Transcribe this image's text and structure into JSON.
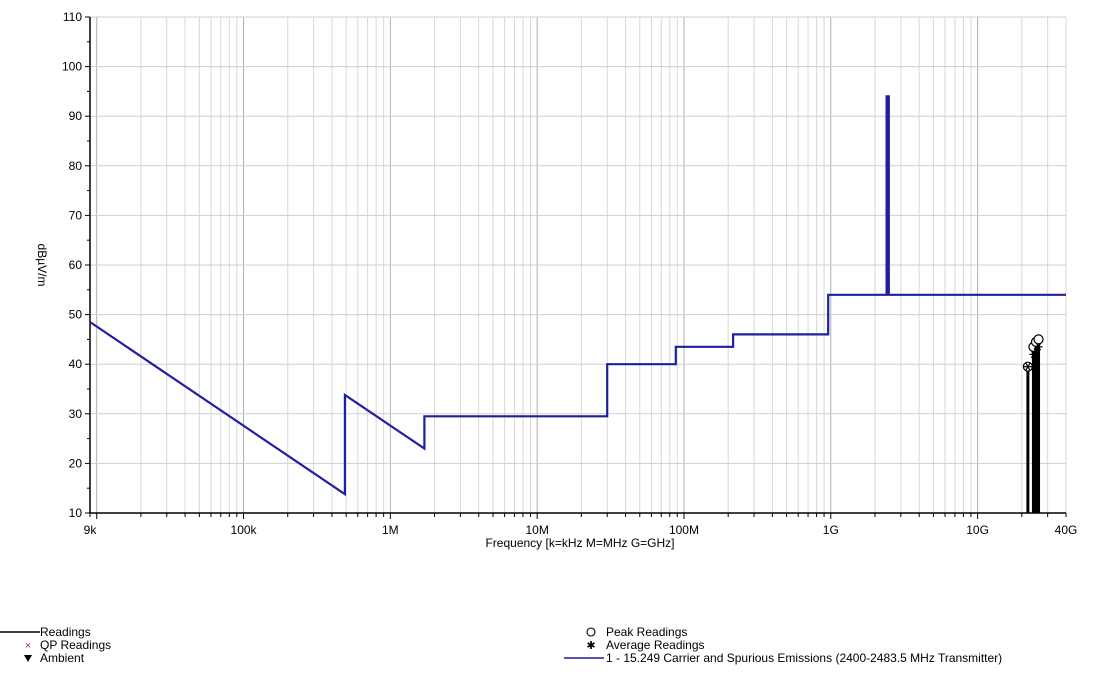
{
  "chart_data": {
    "type": "line",
    "title": "",
    "xlabel": "Frequency [k=kHz M=MHz G=GHz]",
    "ylabel": "dBµV/m",
    "x_scale": "log",
    "xlim_hz": [
      9000,
      40000000000
    ],
    "ylim": [
      10,
      110
    ],
    "grid": true,
    "x_ticks": [
      {
        "value": 9000,
        "label": "9k"
      },
      {
        "value": 100000,
        "label": "100k"
      },
      {
        "value": 1000000,
        "label": "1M"
      },
      {
        "value": 10000000,
        "label": "10M"
      },
      {
        "value": 100000000,
        "label": "100M"
      },
      {
        "value": 1000000000,
        "label": "1G"
      },
      {
        "value": 10000000000,
        "label": "10G"
      },
      {
        "value": 40000000000,
        "label": "40G"
      }
    ],
    "y_ticks": [
      10,
      20,
      30,
      40,
      50,
      60,
      70,
      80,
      90,
      100,
      110
    ],
    "limit_line": {
      "name": "1 - 15.249 Carrier and Spurious Emissions (2400-2483.5 MHz Transmitter)",
      "color": "#1f1fa0",
      "points": [
        [
          9000,
          48.5
        ],
        [
          490000,
          13.8
        ],
        [
          490000,
          33.8
        ],
        [
          1705000,
          23.0
        ],
        [
          1705000,
          29.5
        ],
        [
          30000000,
          29.5
        ],
        [
          30000000,
          40.0
        ],
        [
          88000000,
          40.0
        ],
        [
          88000000,
          43.5
        ],
        [
          216000000,
          43.5
        ],
        [
          216000000,
          46.0
        ],
        [
          960000000,
          46.0
        ],
        [
          960000000,
          54.0
        ],
        [
          2400000000,
          54.0
        ],
        [
          2400000000,
          94.0
        ],
        [
          2483500000,
          94.0
        ],
        [
          2483500000,
          54.0
        ],
        [
          40000000000,
          54.0
        ]
      ]
    },
    "readings": [
      {
        "freq_hz": 22000000000,
        "peak": 39.5,
        "average": 39.5
      },
      {
        "freq_hz": 24000000000,
        "peak": 43.5,
        "average": 42.0
      },
      {
        "freq_hz": 25000000000,
        "peak": 44.5,
        "average": 42.5
      },
      {
        "freq_hz": 26000000000,
        "peak": 45.0,
        "average": 43.5
      }
    ],
    "legend": {
      "placement": "bottom",
      "left": [
        {
          "symbol": "line",
          "label": "Readings",
          "color": "#000000"
        },
        {
          "symbol": "x",
          "label": "QP Readings",
          "color": "#cc3333"
        },
        {
          "symbol": "triangle-down",
          "label": "Ambient",
          "color": "#000000"
        }
      ],
      "right": [
        {
          "symbol": "circle",
          "label": "Peak Readings",
          "color": "#000000"
        },
        {
          "symbol": "asterisk",
          "label": "Average Readings",
          "color": "#000000"
        },
        {
          "symbol": "line",
          "label": "1 - 15.249 Carrier and Spurious Emissions (2400-2483.5 MHz Transmitter)",
          "color": "#1f1fa0"
        }
      ]
    }
  }
}
